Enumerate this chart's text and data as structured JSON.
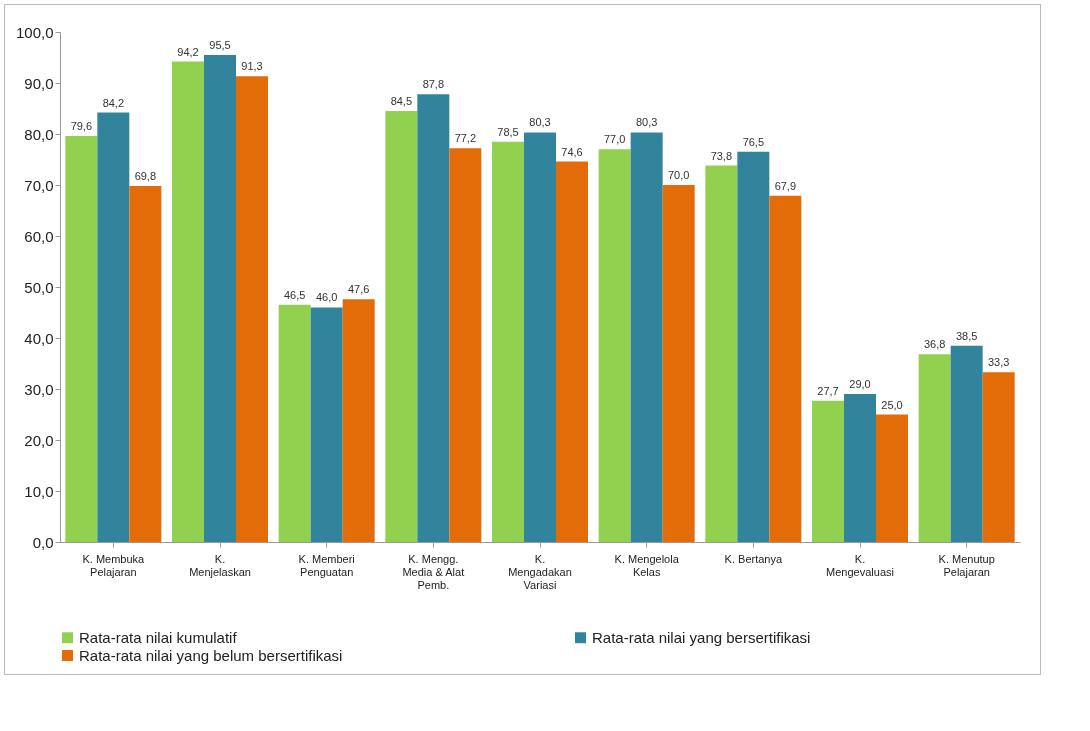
{
  "chart_data": {
    "type": "bar",
    "categories": [
      "K. Membuka Pelajaran",
      "K. Menjelaskan",
      "K. Memberi Penguatan",
      "K. Mengg. Media & Alat Pemb.",
      "K. Mengadakan Variasi",
      "K. Mengelola Kelas",
      "K. Bertanya",
      "K. Mengevaluasi",
      "K. Menutup Pelajaran"
    ],
    "series": [
      {
        "name": "Rata-rata nilai kumulatif",
        "color": "#92d050",
        "values": [
          79.6,
          94.2,
          46.5,
          84.5,
          78.5,
          77.0,
          73.8,
          27.7,
          36.8
        ],
        "value_labels": [
          "79,6",
          "94,2",
          "46,5",
          "84,5",
          "78,5",
          "77,0",
          "73,8",
          "27,7",
          "36,8"
        ]
      },
      {
        "name": "Rata-rata nilai yang bersertifikasi",
        "color": "#31849b",
        "values": [
          84.2,
          95.5,
          46.0,
          87.8,
          80.3,
          80.3,
          76.5,
          29.0,
          38.5
        ],
        "value_labels": [
          "84,2",
          "95,5",
          "46,0",
          "87,8",
          "80,3",
          "80,3",
          "76,5",
          "29,0",
          "38,5"
        ]
      },
      {
        "name": "Rata-rata nilai yang belum bersertifikasi",
        "color": "#e36c09",
        "values": [
          69.8,
          91.3,
          47.6,
          77.2,
          74.6,
          70.0,
          67.9,
          25.0,
          33.3
        ],
        "value_labels": [
          "69,8",
          "91,3",
          "47,6",
          "77,2",
          "74,6",
          "70,0",
          "67,9",
          "25,0",
          "33,3"
        ]
      }
    ],
    "ylim": [
      0,
      100
    ],
    "yticks": [
      {
        "value": 0,
        "label": "0,0"
      },
      {
        "value": 10,
        "label": "10,0"
      },
      {
        "value": 20,
        "label": "20,0"
      },
      {
        "value": 30,
        "label": "30,0"
      },
      {
        "value": 40,
        "label": "40,0"
      },
      {
        "value": 50,
        "label": "50,0"
      },
      {
        "value": 60,
        "label": "60,0"
      },
      {
        "value": 70,
        "label": "70,0"
      },
      {
        "value": 80,
        "label": "80,0"
      },
      {
        "value": 90,
        "label": "90,0"
      },
      {
        "value": 100,
        "label": "100,0"
      }
    ],
    "grid": false,
    "legend": "bottom"
  }
}
